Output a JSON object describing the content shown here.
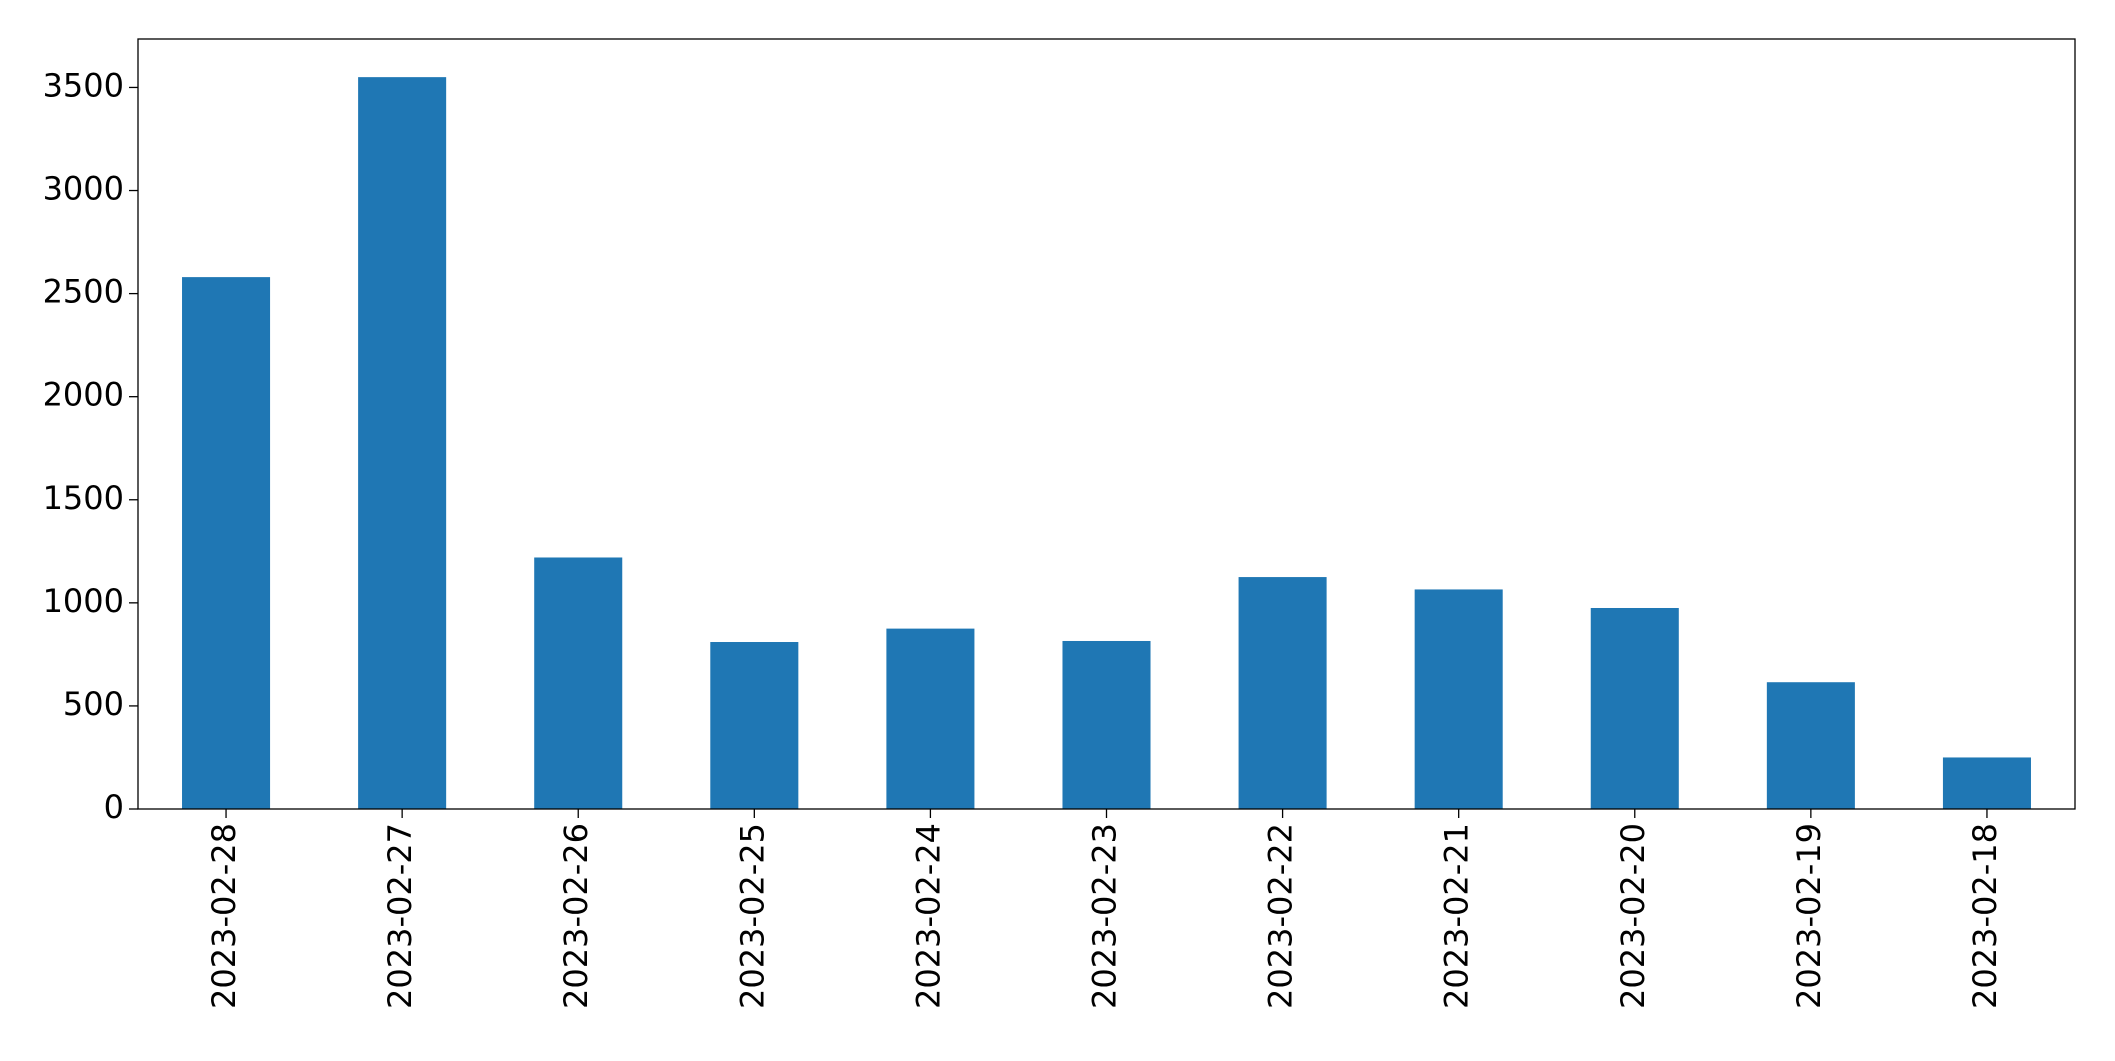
{
  "chart_data": {
    "type": "bar",
    "categories": [
      "2023-02-28",
      "2023-02-27",
      "2023-02-26",
      "2023-02-25",
      "2023-02-24",
      "2023-02-23",
      "2023-02-22",
      "2023-02-21",
      "2023-02-20",
      "2023-02-19",
      "2023-02-18"
    ],
    "values": [
      2580,
      3550,
      1220,
      810,
      875,
      815,
      1125,
      1065,
      975,
      615,
      250
    ],
    "color": "#1f77b4",
    "ylim": [
      0,
      3735
    ],
    "yticks": [
      0,
      500,
      1000,
      1500,
      2000,
      2500,
      3000,
      3500
    ],
    "grid": false
  }
}
